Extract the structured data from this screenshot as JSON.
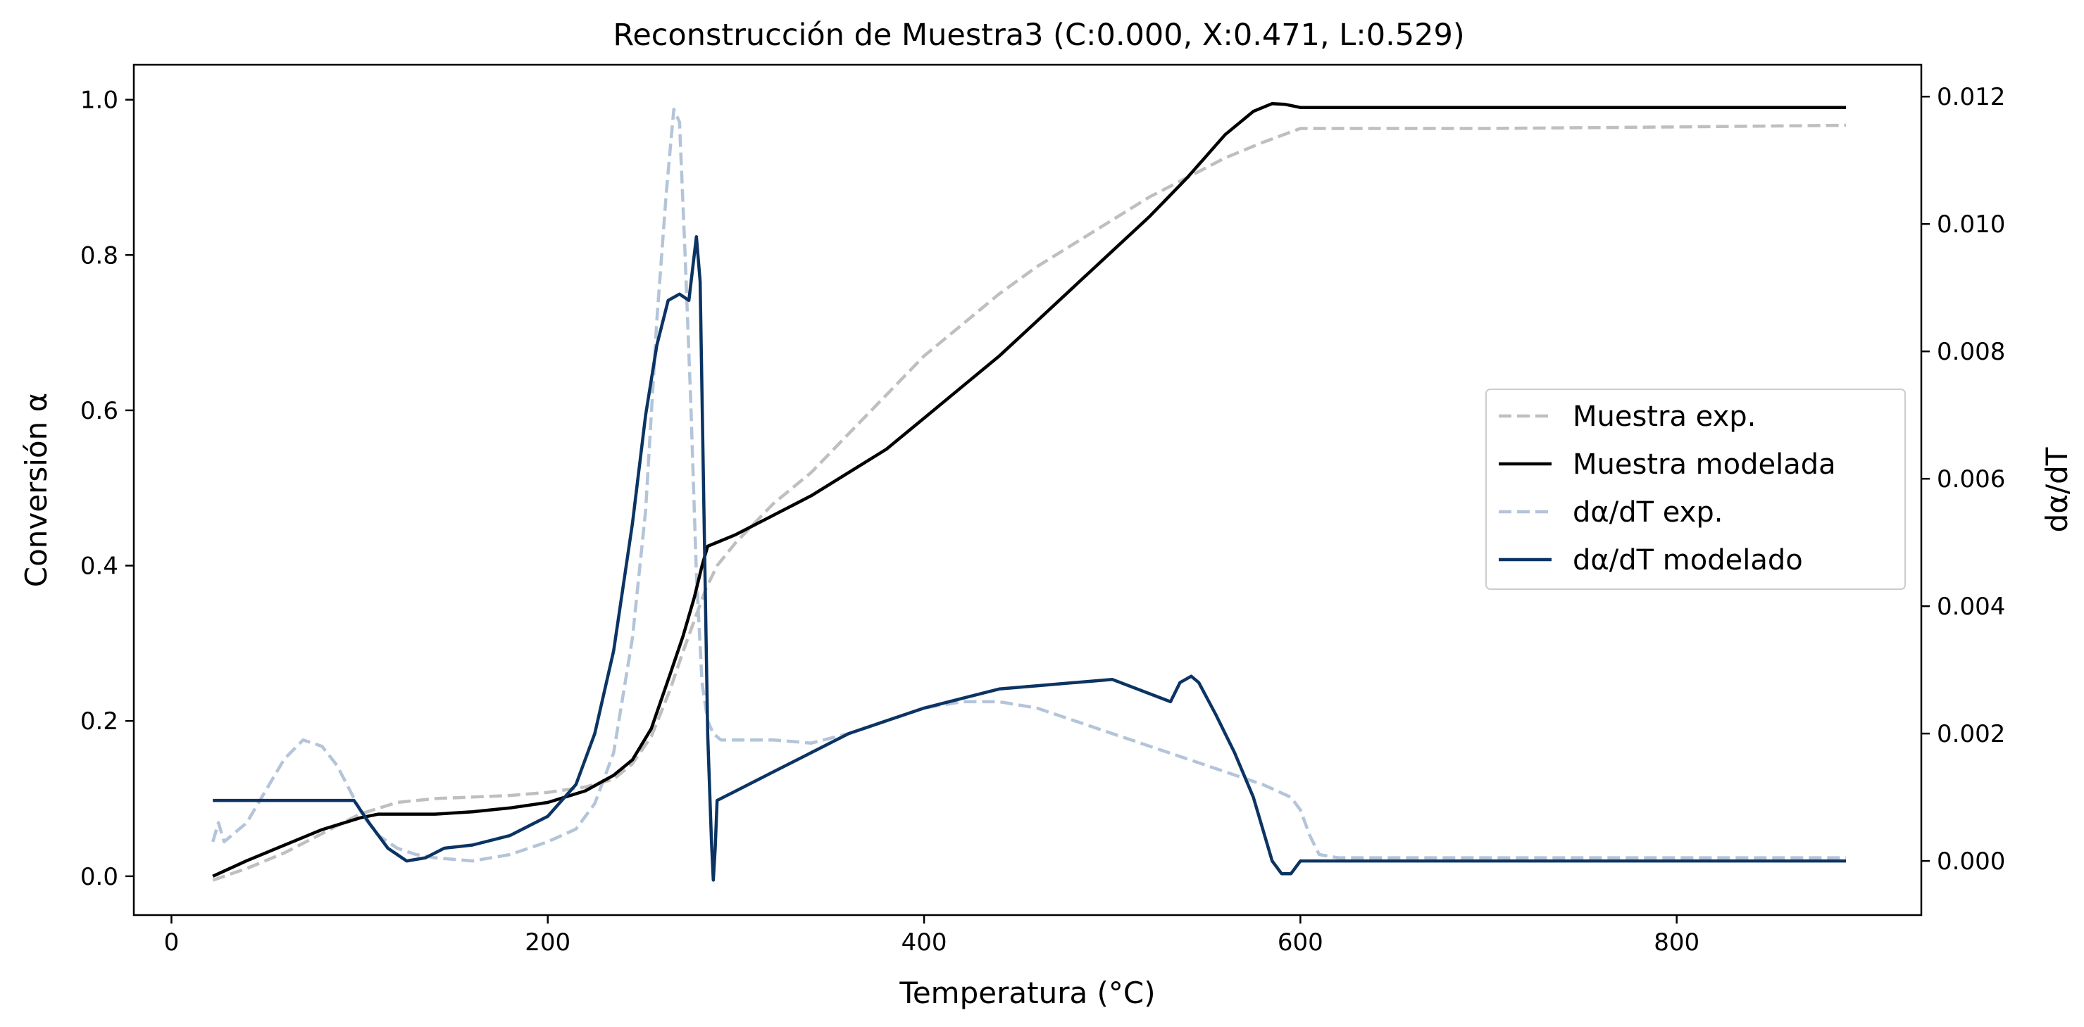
{
  "chart_data": {
    "type": "line",
    "title": "Reconstrucción de Muestra3 (C:0.000, X:0.471, L:0.529)",
    "xlabel": "Temperatura (°C)",
    "ylabel": "Conversión α",
    "y2label": "dα/dT",
    "xlim": [
      -20,
      930
    ],
    "ylim": [
      -0.05,
      1.045
    ],
    "y2lim": [
      -0.00085,
      0.0125
    ],
    "xticks": [
      0,
      200,
      400,
      600,
      800
    ],
    "yticks": [
      0.0,
      0.2,
      0.4,
      0.6,
      0.8,
      1.0
    ],
    "y2ticks": [
      0.0,
      0.002,
      0.004,
      0.006,
      0.008,
      0.01,
      0.012
    ],
    "legend_position": "center-right",
    "series": [
      {
        "name": "Muestra exp.",
        "axis": "left",
        "color": "#bfbfbf",
        "style": "dashed",
        "x": [
          22,
          40,
          60,
          80,
          100,
          120,
          140,
          160,
          180,
          200,
          220,
          235,
          245,
          255,
          265,
          272,
          278,
          284,
          290,
          300,
          320,
          340,
          360,
          380,
          400,
          420,
          440,
          460,
          480,
          500,
          520,
          540,
          560,
          580,
          600,
          620,
          700,
          800,
          890
        ],
        "values": [
          -0.005,
          0.01,
          0.03,
          0.055,
          0.08,
          0.095,
          0.1,
          0.102,
          0.104,
          0.108,
          0.115,
          0.125,
          0.145,
          0.18,
          0.24,
          0.29,
          0.33,
          0.37,
          0.4,
          0.43,
          0.48,
          0.52,
          0.57,
          0.62,
          0.67,
          0.71,
          0.75,
          0.785,
          0.815,
          0.845,
          0.875,
          0.9,
          0.925,
          0.945,
          0.963,
          0.963,
          0.963,
          0.965,
          0.967
        ]
      },
      {
        "name": "Muestra modelada",
        "axis": "left",
        "color": "#000000",
        "style": "solid",
        "x": [
          22,
          40,
          60,
          80,
          100,
          110,
          120,
          140,
          160,
          180,
          200,
          220,
          235,
          245,
          255,
          265,
          272,
          278,
          282,
          285,
          290,
          300,
          320,
          340,
          360,
          380,
          400,
          420,
          440,
          460,
          480,
          500,
          520,
          540,
          560,
          575,
          585,
          592,
          600,
          620,
          700,
          800,
          890
        ],
        "values": [
          0.0,
          0.02,
          0.04,
          0.06,
          0.075,
          0.08,
          0.08,
          0.08,
          0.083,
          0.088,
          0.095,
          0.11,
          0.13,
          0.15,
          0.19,
          0.26,
          0.31,
          0.36,
          0.4,
          0.425,
          0.43,
          0.44,
          0.465,
          0.49,
          0.52,
          0.55,
          0.59,
          0.63,
          0.67,
          0.715,
          0.76,
          0.805,
          0.85,
          0.9,
          0.955,
          0.985,
          0.995,
          0.994,
          0.99,
          0.99,
          0.99,
          0.99,
          0.99
        ]
      },
      {
        "name": "dα/dT exp.",
        "axis": "right",
        "color": "#b4c4d9",
        "style": "dashed",
        "x": [
          22,
          25,
          28,
          32,
          40,
          50,
          60,
          70,
          80,
          88,
          95,
          102,
          110,
          120,
          130,
          140,
          160,
          180,
          200,
          215,
          225,
          235,
          245,
          252,
          258,
          263,
          267,
          270,
          273,
          276,
          279,
          282,
          285,
          288,
          292,
          300,
          320,
          340,
          360,
          380,
          400,
          420,
          440,
          460,
          480,
          500,
          520,
          540,
          560,
          580,
          595,
          600,
          605,
          610,
          620,
          700,
          800,
          890
        ],
        "values": [
          0.0003,
          0.0006,
          0.0003,
          0.0004,
          0.0006,
          0.0011,
          0.0016,
          0.0019,
          0.0018,
          0.0015,
          0.0011,
          0.0007,
          0.0004,
          0.0002,
          0.0001,
          5e-05,
          0.0,
          0.0001,
          0.0003,
          0.0005,
          0.0009,
          0.0017,
          0.0035,
          0.0055,
          0.0085,
          0.0105,
          0.0118,
          0.0116,
          0.0095,
          0.0072,
          0.0045,
          0.0028,
          0.0022,
          0.002,
          0.0019,
          0.0019,
          0.0019,
          0.00185,
          0.002,
          0.0022,
          0.0024,
          0.0025,
          0.0025,
          0.0024,
          0.0022,
          0.002,
          0.0018,
          0.0016,
          0.0014,
          0.0012,
          0.001,
          0.0008,
          0.0004,
          0.0001,
          5e-05,
          5e-05,
          5e-05,
          5e-05
        ]
      },
      {
        "name": "dα/dT modelado",
        "axis": "right",
        "color": "#0b3463",
        "style": "solid",
        "x": [
          22,
          60,
          97,
          105,
          115,
          125,
          135,
          145,
          160,
          180,
          200,
          215,
          225,
          235,
          245,
          252,
          258,
          264,
          270,
          275,
          279,
          281,
          283,
          285,
          287,
          288,
          289,
          290,
          300,
          320,
          340,
          360,
          380,
          400,
          420,
          440,
          460,
          480,
          500,
          531,
          536,
          542,
          546,
          555,
          565,
          575,
          585,
          590,
          595,
          600,
          605,
          700,
          800,
          890
        ],
        "values": [
          0.00095,
          0.00095,
          0.00095,
          0.0006,
          0.0002,
          0.0,
          5e-05,
          0.0002,
          0.00025,
          0.0004,
          0.0007,
          0.0012,
          0.002,
          0.0033,
          0.0053,
          0.007,
          0.0081,
          0.0088,
          0.0089,
          0.0088,
          0.0098,
          0.0091,
          0.0055,
          0.002,
          0.0003,
          -0.0003,
          0.0002,
          0.00095,
          0.0011,
          0.0014,
          0.0017,
          0.002,
          0.0022,
          0.0024,
          0.00255,
          0.0027,
          0.00275,
          0.0028,
          0.00285,
          0.0025,
          0.0028,
          0.0029,
          0.0028,
          0.0023,
          0.0017,
          0.001,
          0.0,
          -0.0002,
          -0.0002,
          0.0,
          0.0,
          0.0,
          0.0,
          0.0
        ]
      }
    ]
  }
}
